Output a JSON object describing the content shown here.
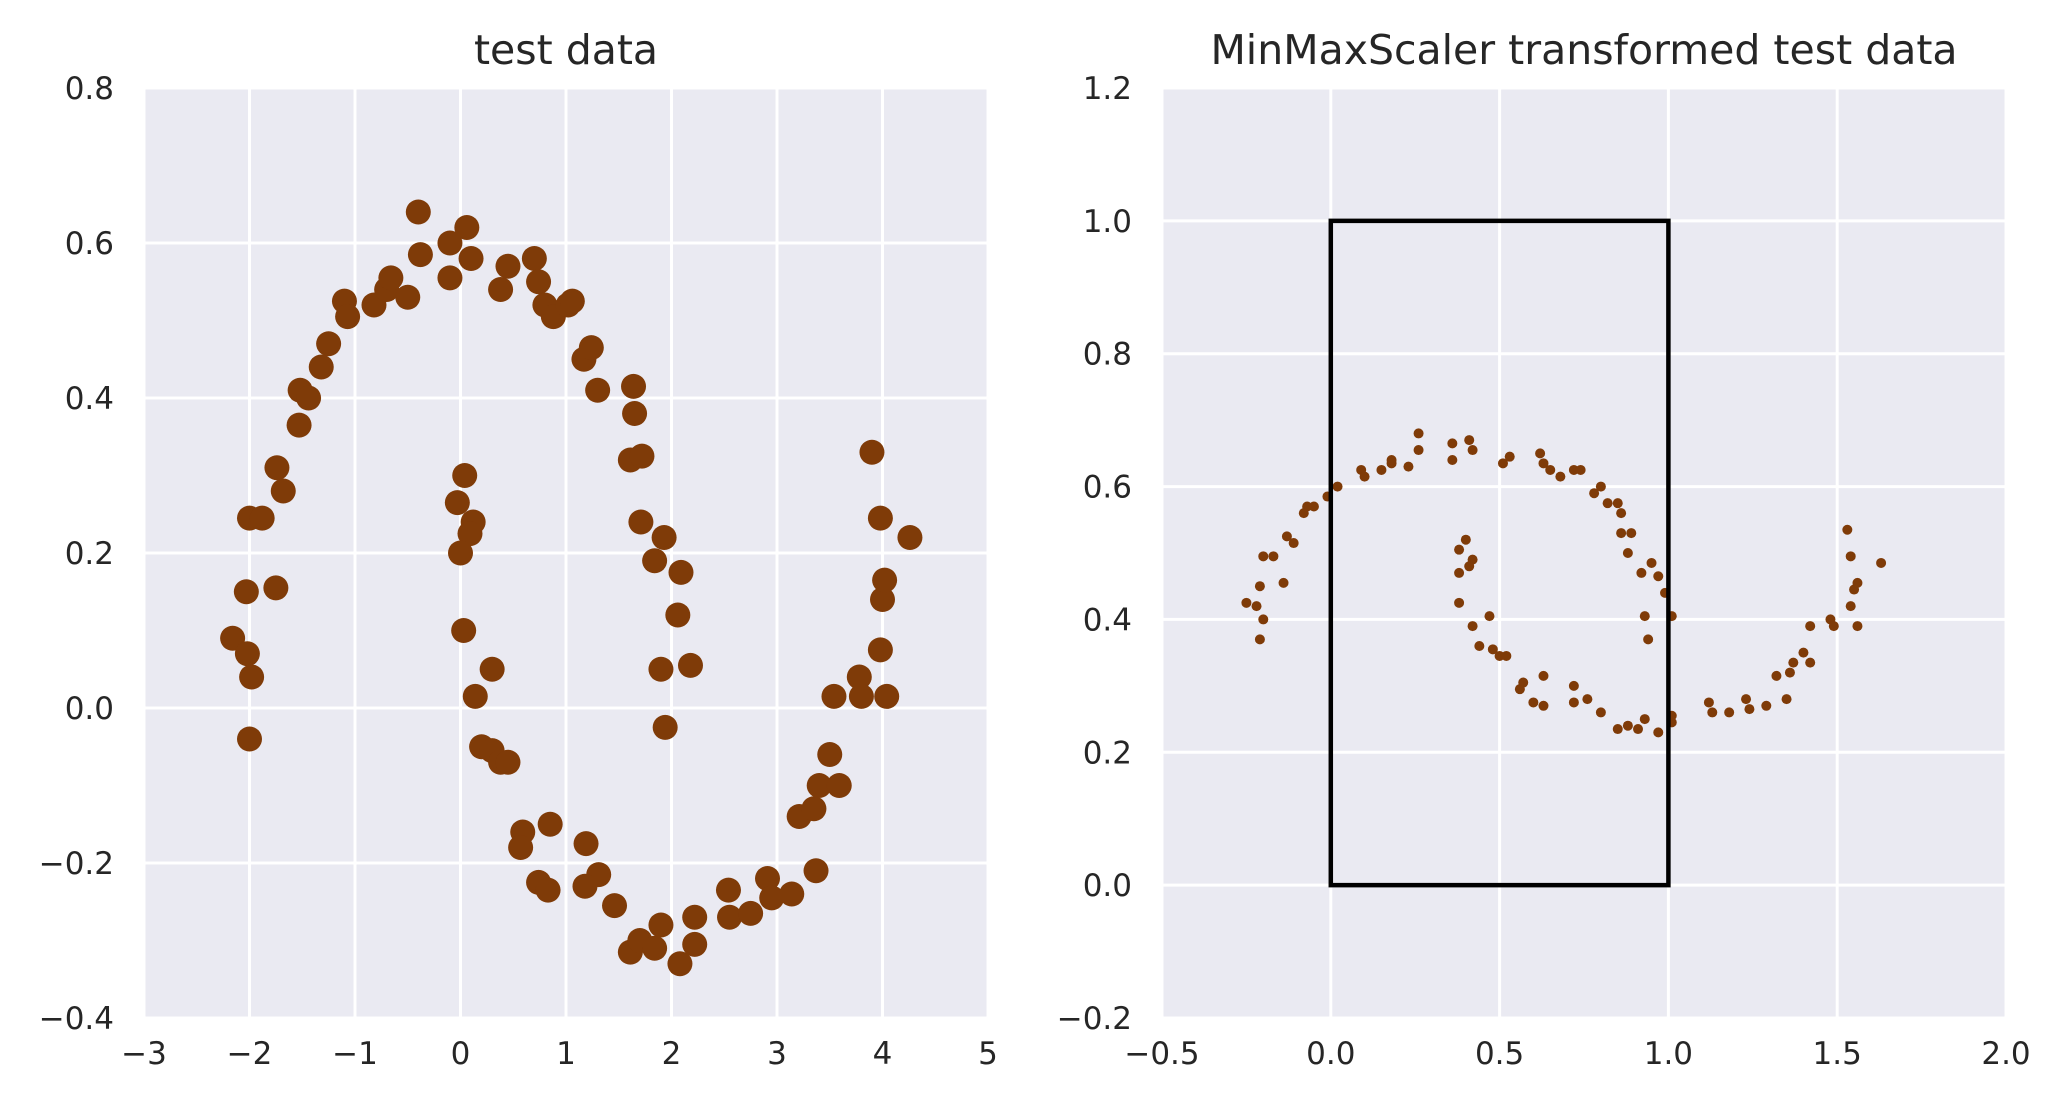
{
  "chart_data": [
    {
      "type": "scatter",
      "title": "test data",
      "xlabel": "",
      "ylabel": "",
      "xlim": [
        -3,
        5
      ],
      "ylim": [
        -0.4,
        0.8
      ],
      "xticks": [
        -3,
        -2,
        -1,
        0,
        1,
        2,
        3,
        4,
        5
      ],
      "xtick_labels": [
        "−3",
        "−2",
        "−1",
        "0",
        "1",
        "2",
        "3",
        "4",
        "5"
      ],
      "yticks": [
        -0.4,
        -0.2,
        0.0,
        0.2,
        0.4,
        0.6,
        0.8
      ],
      "ytick_labels": [
        "−0.4",
        "−0.2",
        "0.0",
        "0.2",
        "0.4",
        "0.6",
        "0.8"
      ],
      "grid": true,
      "background": "#eaeaf2",
      "point_color": "#7f3b08",
      "points": [
        [
          -2.16,
          0.09
        ],
        [
          -2.03,
          0.15
        ],
        [
          -2.02,
          0.07
        ],
        [
          -1.98,
          0.04
        ],
        [
          -2.0,
          -0.04
        ],
        [
          -2.0,
          0.245
        ],
        [
          -1.88,
          0.245
        ],
        [
          -1.74,
          0.31
        ],
        [
          -1.68,
          0.28
        ],
        [
          -1.75,
          0.155
        ],
        [
          -1.53,
          0.365
        ],
        [
          -1.52,
          0.41
        ],
        [
          -1.44,
          0.4
        ],
        [
          -1.32,
          0.44
        ],
        [
          -1.25,
          0.47
        ],
        [
          -1.1,
          0.525
        ],
        [
          -1.07,
          0.505
        ],
        [
          -0.82,
          0.52
        ],
        [
          -0.7,
          0.54
        ],
        [
          -0.66,
          0.555
        ],
        [
          -0.5,
          0.53
        ],
        [
          -0.4,
          0.64
        ],
        [
          -0.38,
          0.585
        ],
        [
          -0.1,
          0.6
        ],
        [
          -0.1,
          0.555
        ],
        [
          0.06,
          0.62
        ],
        [
          0.1,
          0.58
        ],
        [
          0.38,
          0.54
        ],
        [
          0.45,
          0.57
        ],
        [
          0.7,
          0.58
        ],
        [
          0.74,
          0.55
        ],
        [
          0.8,
          0.52
        ],
        [
          0.88,
          0.505
        ],
        [
          1.02,
          0.52
        ],
        [
          1.06,
          0.525
        ],
        [
          1.17,
          0.45
        ],
        [
          1.24,
          0.465
        ],
        [
          1.3,
          0.41
        ],
        [
          1.64,
          0.415
        ],
        [
          1.65,
          0.38
        ],
        [
          1.61,
          0.32
        ],
        [
          1.72,
          0.325
        ],
        [
          1.71,
          0.24
        ],
        [
          1.84,
          0.19
        ],
        [
          1.93,
          0.22
        ],
        [
          2.09,
          0.175
        ],
        [
          2.06,
          0.12
        ],
        [
          2.18,
          0.055
        ],
        [
          1.9,
          0.05
        ],
        [
          1.94,
          -0.025
        ],
        [
          -0.03,
          0.265
        ],
        [
          0.04,
          0.3
        ],
        [
          0.12,
          0.24
        ],
        [
          0.09,
          0.225
        ],
        [
          0.0,
          0.2
        ],
        [
          0.03,
          0.1
        ],
        [
          0.3,
          0.05
        ],
        [
          0.14,
          0.015
        ],
        [
          0.2,
          -0.05
        ],
        [
          0.3,
          -0.055
        ],
        [
          0.38,
          -0.07
        ],
        [
          0.45,
          -0.07
        ],
        [
          0.59,
          -0.16
        ],
        [
          0.57,
          -0.18
        ],
        [
          0.85,
          -0.15
        ],
        [
          0.74,
          -0.225
        ],
        [
          0.83,
          -0.235
        ],
        [
          1.19,
          -0.175
        ],
        [
          1.31,
          -0.215
        ],
        [
          1.18,
          -0.23
        ],
        [
          1.46,
          -0.255
        ],
        [
          1.61,
          -0.315
        ],
        [
          1.7,
          -0.3
        ],
        [
          1.84,
          -0.31
        ],
        [
          1.9,
          -0.28
        ],
        [
          2.08,
          -0.33
        ],
        [
          2.22,
          -0.305
        ],
        [
          2.22,
          -0.27
        ],
        [
          2.54,
          -0.235
        ],
        [
          2.55,
          -0.27
        ],
        [
          2.75,
          -0.265
        ],
        [
          2.91,
          -0.22
        ],
        [
          2.95,
          -0.245
        ],
        [
          3.14,
          -0.24
        ],
        [
          3.37,
          -0.21
        ],
        [
          3.21,
          -0.14
        ],
        [
          3.35,
          -0.13
        ],
        [
          3.4,
          -0.1
        ],
        [
          3.5,
          -0.06
        ],
        [
          3.59,
          -0.1
        ],
        [
          3.54,
          0.015
        ],
        [
          3.78,
          0.04
        ],
        [
          3.8,
          0.015
        ],
        [
          3.98,
          0.075
        ],
        [
          4.04,
          0.015
        ],
        [
          4.0,
          0.14
        ],
        [
          4.02,
          0.165
        ],
        [
          4.26,
          0.22
        ],
        [
          3.98,
          0.245
        ],
        [
          3.9,
          0.33
        ]
      ]
    },
    {
      "type": "scatter",
      "title": "MinMaxScaler transformed test data",
      "xlabel": "",
      "ylabel": "",
      "xlim": [
        -0.5,
        2.0
      ],
      "ylim": [
        -0.2,
        1.2
      ],
      "xticks": [
        -0.5,
        0.0,
        0.5,
        1.0,
        1.5,
        2.0
      ],
      "xtick_labels": [
        "−0.5",
        "0.0",
        "0.5",
        "1.0",
        "1.5",
        "2.0"
      ],
      "yticks": [
        -0.2,
        0.0,
        0.2,
        0.4,
        0.6,
        0.8,
        1.0,
        1.2
      ],
      "ytick_labels": [
        "−0.2",
        "0.0",
        "0.2",
        "0.4",
        "0.6",
        "0.8",
        "1.0",
        "1.2"
      ],
      "grid": true,
      "background": "#eaeaf2",
      "point_color": "#7f3b08",
      "rectangle": {
        "x0": 0.0,
        "y0": 0.0,
        "x1": 1.0,
        "y1": 1.0,
        "color": "#000000"
      },
      "points": [
        [
          -0.25,
          0.425
        ],
        [
          -0.21,
          0.45
        ],
        [
          -0.22,
          0.42
        ],
        [
          -0.2,
          0.4
        ],
        [
          -0.21,
          0.37
        ],
        [
          -0.2,
          0.495
        ],
        [
          -0.17,
          0.495
        ],
        [
          -0.14,
          0.455
        ],
        [
          -0.13,
          0.525
        ],
        [
          -0.11,
          0.515
        ],
        [
          -0.08,
          0.56
        ],
        [
          -0.07,
          0.57
        ],
        [
          -0.05,
          0.57
        ],
        [
          -0.01,
          0.585
        ],
        [
          0.02,
          0.6
        ],
        [
          0.09,
          0.625
        ],
        [
          0.1,
          0.615
        ],
        [
          0.15,
          0.625
        ],
        [
          0.18,
          0.635
        ],
        [
          0.18,
          0.64
        ],
        [
          0.23,
          0.63
        ],
        [
          0.26,
          0.68
        ],
        [
          0.26,
          0.655
        ],
        [
          0.36,
          0.665
        ],
        [
          0.36,
          0.64
        ],
        [
          0.41,
          0.67
        ],
        [
          0.42,
          0.655
        ],
        [
          0.51,
          0.635
        ],
        [
          0.53,
          0.645
        ],
        [
          0.62,
          0.65
        ],
        [
          0.63,
          0.635
        ],
        [
          0.65,
          0.625
        ],
        [
          0.68,
          0.615
        ],
        [
          0.72,
          0.625
        ],
        [
          0.74,
          0.625
        ],
        [
          0.78,
          0.59
        ],
        [
          0.8,
          0.6
        ],
        [
          0.82,
          0.575
        ],
        [
          0.85,
          0.575
        ],
        [
          0.86,
          0.56
        ],
        [
          0.86,
          0.53
        ],
        [
          0.89,
          0.53
        ],
        [
          0.88,
          0.5
        ],
        [
          0.92,
          0.47
        ],
        [
          0.95,
          0.485
        ],
        [
          0.97,
          0.465
        ],
        [
          0.99,
          0.44
        ],
        [
          1.01,
          0.405
        ],
        [
          0.93,
          0.405
        ],
        [
          0.94,
          0.37
        ],
        [
          0.38,
          0.505
        ],
        [
          0.4,
          0.52
        ],
        [
          0.42,
          0.49
        ],
        [
          0.41,
          0.48
        ],
        [
          0.38,
          0.47
        ],
        [
          0.38,
          0.425
        ],
        [
          0.47,
          0.405
        ],
        [
          0.42,
          0.39
        ],
        [
          0.44,
          0.36
        ],
        [
          0.48,
          0.355
        ],
        [
          0.5,
          0.345
        ],
        [
          0.52,
          0.345
        ],
        [
          0.57,
          0.305
        ],
        [
          0.56,
          0.295
        ],
        [
          0.63,
          0.315
        ],
        [
          0.6,
          0.275
        ],
        [
          0.63,
          0.27
        ],
        [
          0.72,
          0.3
        ],
        [
          0.76,
          0.28
        ],
        [
          0.72,
          0.275
        ],
        [
          0.8,
          0.26
        ],
        [
          0.85,
          0.235
        ],
        [
          0.88,
          0.24
        ],
        [
          0.91,
          0.235
        ],
        [
          0.93,
          0.25
        ],
        [
          0.97,
          0.23
        ],
        [
          1.01,
          0.245
        ],
        [
          1.01,
          0.255
        ],
        [
          1.12,
          0.275
        ],
        [
          1.13,
          0.26
        ],
        [
          1.18,
          0.26
        ],
        [
          1.23,
          0.28
        ],
        [
          1.24,
          0.265
        ],
        [
          1.29,
          0.27
        ],
        [
          1.35,
          0.28
        ],
        [
          1.32,
          0.315
        ],
        [
          1.36,
          0.32
        ],
        [
          1.37,
          0.335
        ],
        [
          1.4,
          0.35
        ],
        [
          1.42,
          0.335
        ],
        [
          1.42,
          0.39
        ],
        [
          1.48,
          0.4
        ],
        [
          1.49,
          0.39
        ],
        [
          1.54,
          0.42
        ],
        [
          1.56,
          0.39
        ],
        [
          1.55,
          0.445
        ],
        [
          1.56,
          0.455
        ],
        [
          1.63,
          0.485
        ],
        [
          1.54,
          0.495
        ],
        [
          1.53,
          0.535
        ]
      ]
    }
  ]
}
